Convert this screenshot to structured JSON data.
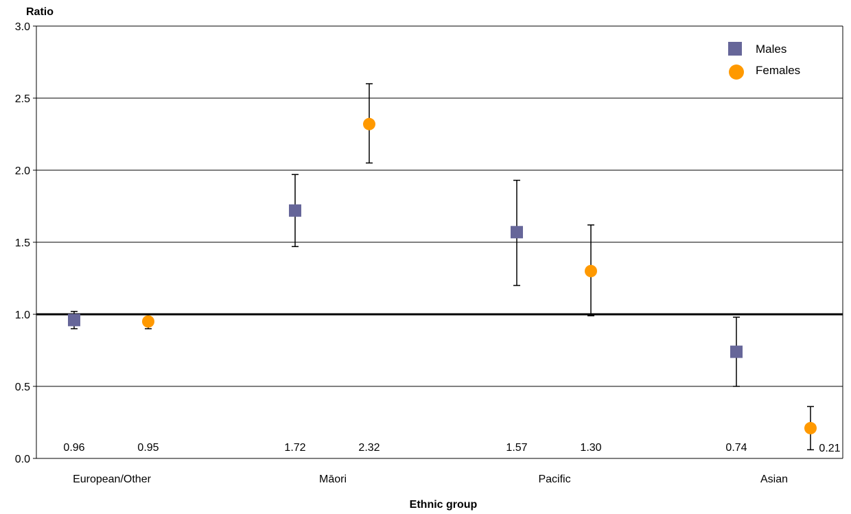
{
  "chart_data": {
    "type": "scatter",
    "title": "",
    "xlabel": "Ethnic group",
    "ylabel": "Ratio",
    "categories": [
      "European/Other",
      "Māori",
      "Pacific",
      "Asian"
    ],
    "ylim": [
      0,
      3
    ],
    "yticks": [
      "0.0",
      "0.5",
      "1.0",
      "1.5",
      "2.0",
      "2.5",
      "3.0"
    ],
    "reference_line": 1.0,
    "grid": "horizontal",
    "legend_position": "top-right",
    "series": [
      {
        "name": "Males",
        "marker": "square",
        "color": "#666699",
        "values": [
          0.96,
          1.72,
          1.57,
          0.74
        ],
        "lower": [
          0.9,
          1.47,
          1.2,
          0.5
        ],
        "upper": [
          1.02,
          1.97,
          1.93,
          0.98
        ],
        "labels": [
          "0.96",
          "1.72",
          "1.57",
          "0.74"
        ]
      },
      {
        "name": "Females",
        "marker": "circle",
        "color": "#FF9900",
        "values": [
          0.95,
          2.32,
          1.3,
          0.21
        ],
        "lower": [
          0.9,
          2.05,
          0.99,
          0.06
        ],
        "upper": [
          1.0,
          2.6,
          1.62,
          0.36
        ],
        "labels": [
          "0.95",
          "2.32",
          "1.30",
          "0.21"
        ]
      }
    ]
  }
}
